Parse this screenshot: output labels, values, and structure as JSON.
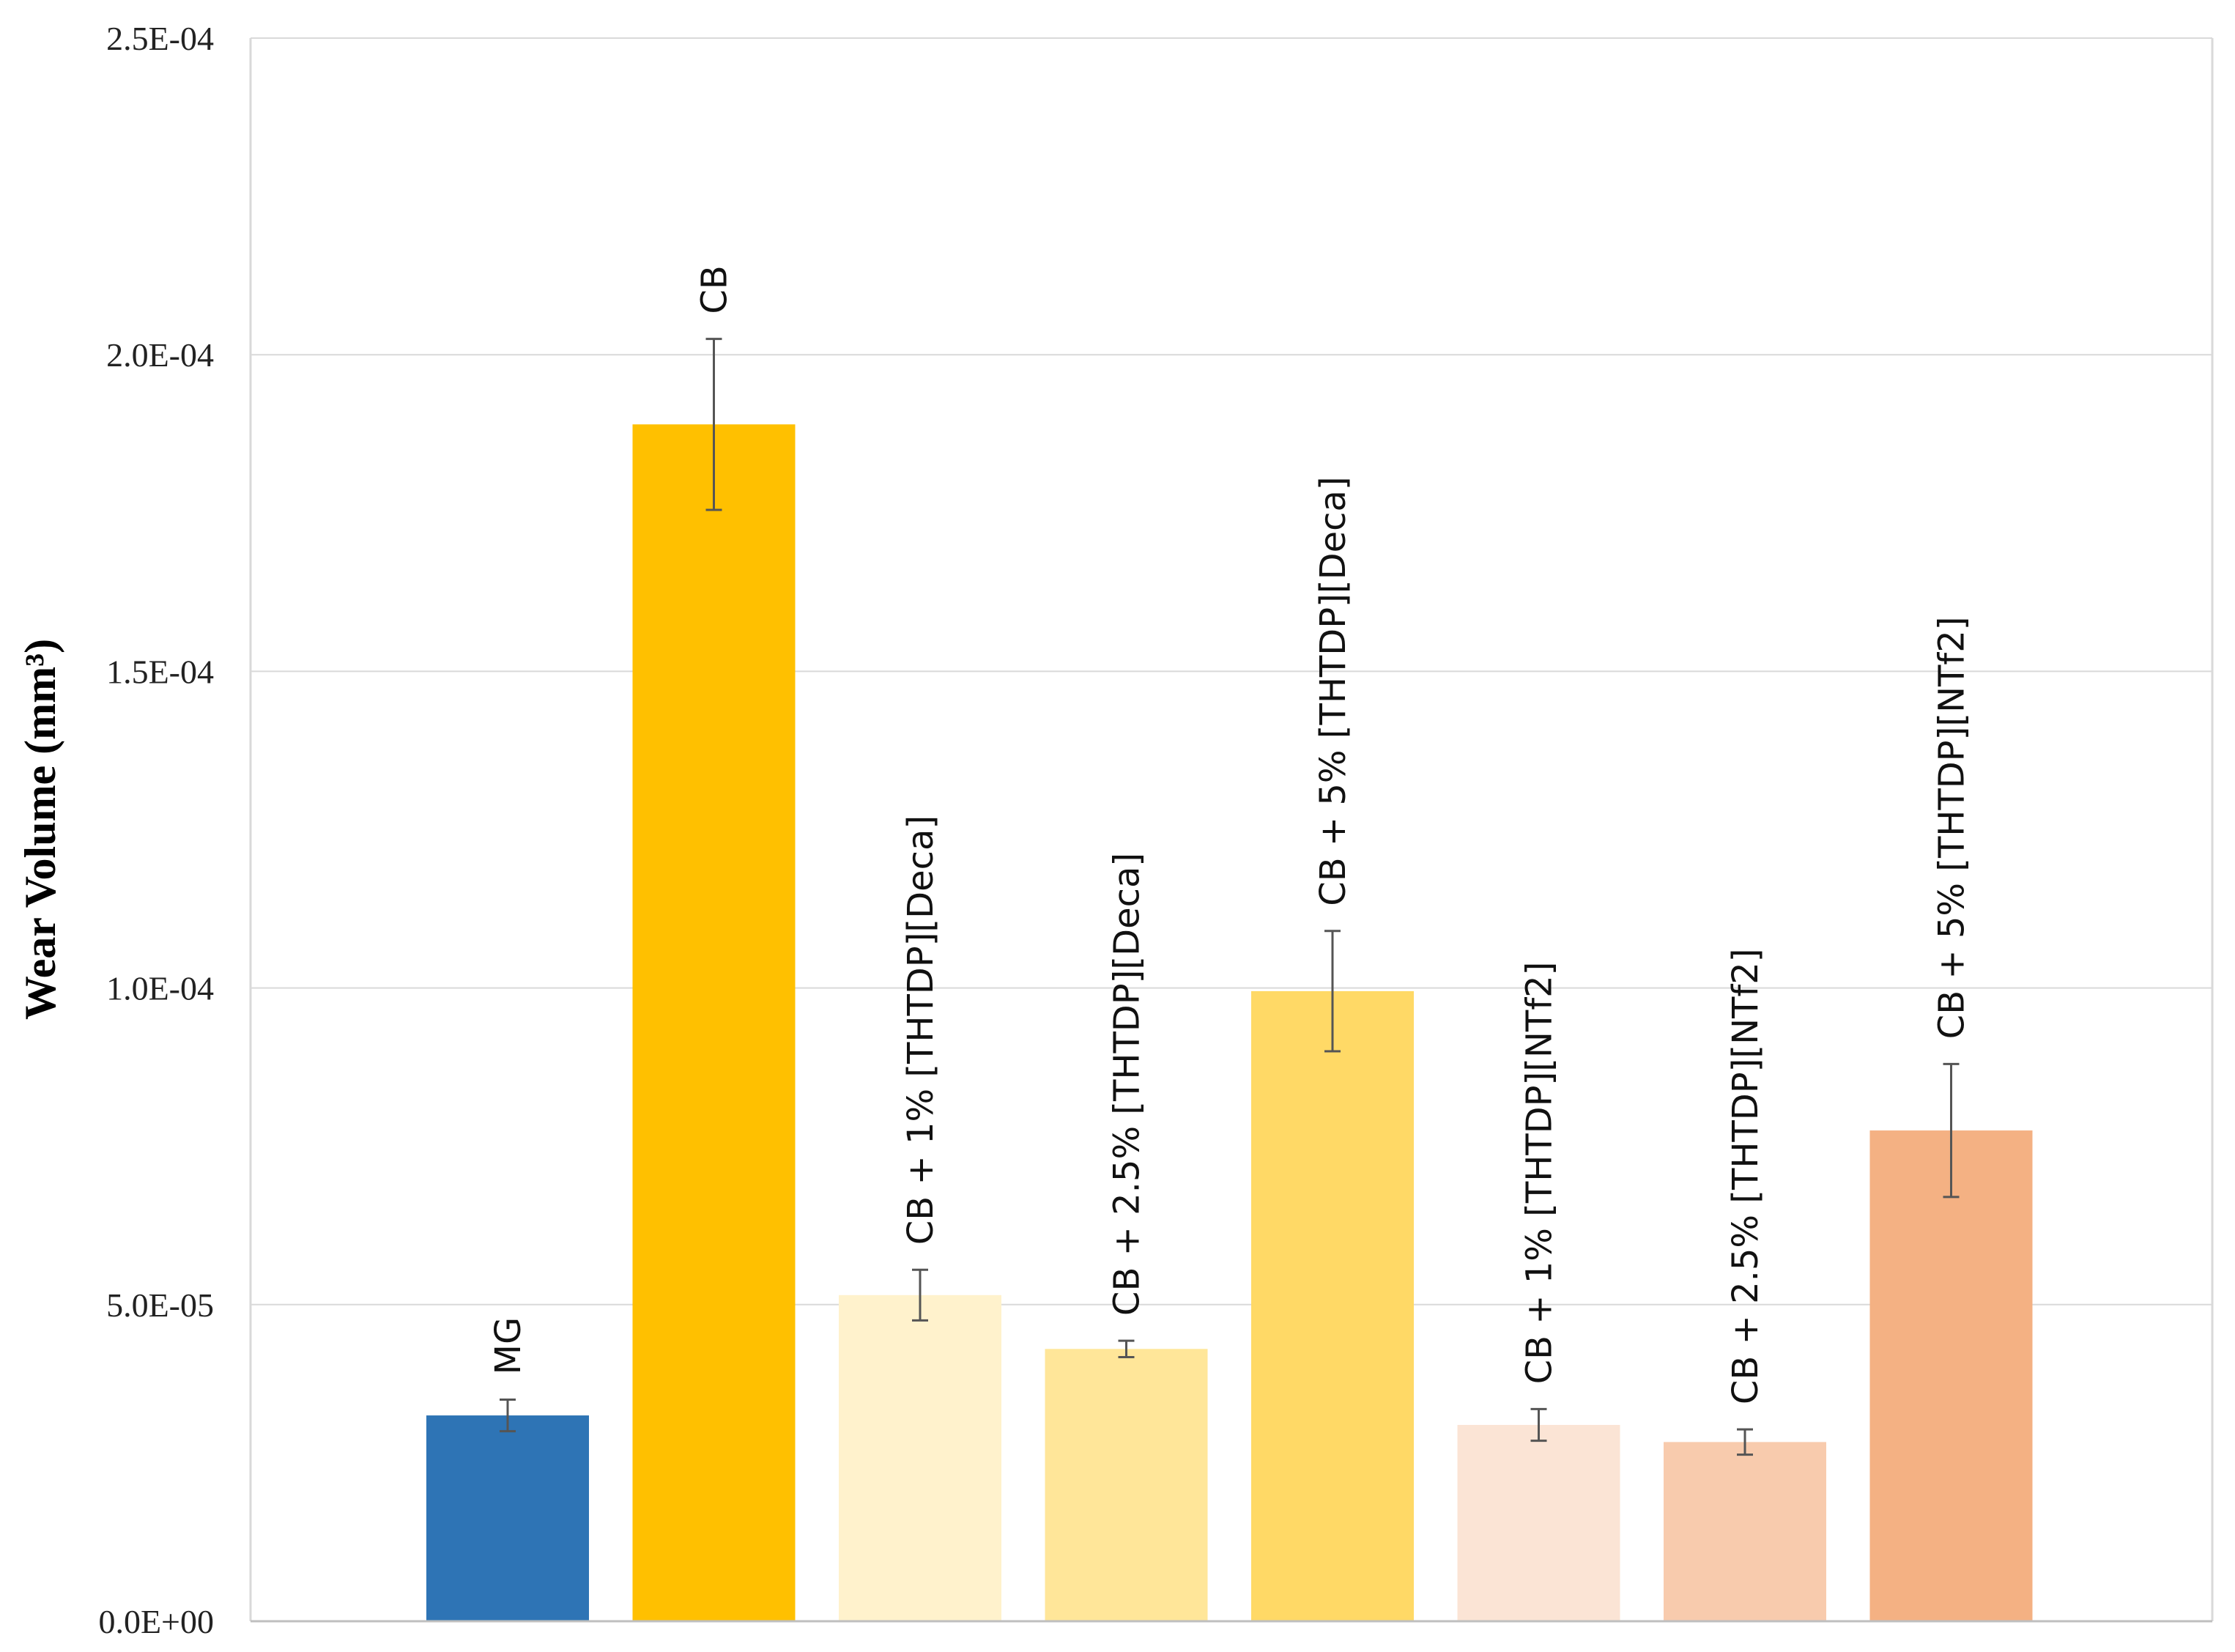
{
  "chart_data": {
    "type": "bar",
    "title": "",
    "xlabel": "",
    "ylabel": "Wear Volume (mm³)",
    "ylim": [
      0,
      0.00025
    ],
    "y_ticks": [
      "0.0E+00",
      "5.0E-05",
      "1.0E-04",
      "1.5E-04",
      "2.0E-04",
      "2.5E-04"
    ],
    "grid": true,
    "categories": [
      "MG",
      "CB",
      "CB +  1% [THTDP][Deca]",
      "CB +  2.5% [THTDP][Deca]",
      "CB +  5% [THTDP][Deca]",
      "CB +  1% [THTDP][NTf2]",
      "CB +  2.5% [THTDP][NTf2]",
      "CB +  5% [THTDP][NTf2]"
    ],
    "values": [
      3.25e-05,
      0.000189,
      5.15e-05,
      4.3e-05,
      9.95e-05,
      3.1e-05,
      2.83e-05,
      7.75e-05
    ],
    "error": [
      2.5e-06,
      1.35e-05,
      4e-06,
      1.3e-06,
      9.5e-06,
      2.5e-06,
      2e-06,
      1.05e-05
    ],
    "colors": [
      "#2e74b5",
      "#ffc000",
      "#fff2cc",
      "#ffe699",
      "#ffd966",
      "#fbe4d5",
      "#f8cbad",
      "#f4b183"
    ]
  }
}
